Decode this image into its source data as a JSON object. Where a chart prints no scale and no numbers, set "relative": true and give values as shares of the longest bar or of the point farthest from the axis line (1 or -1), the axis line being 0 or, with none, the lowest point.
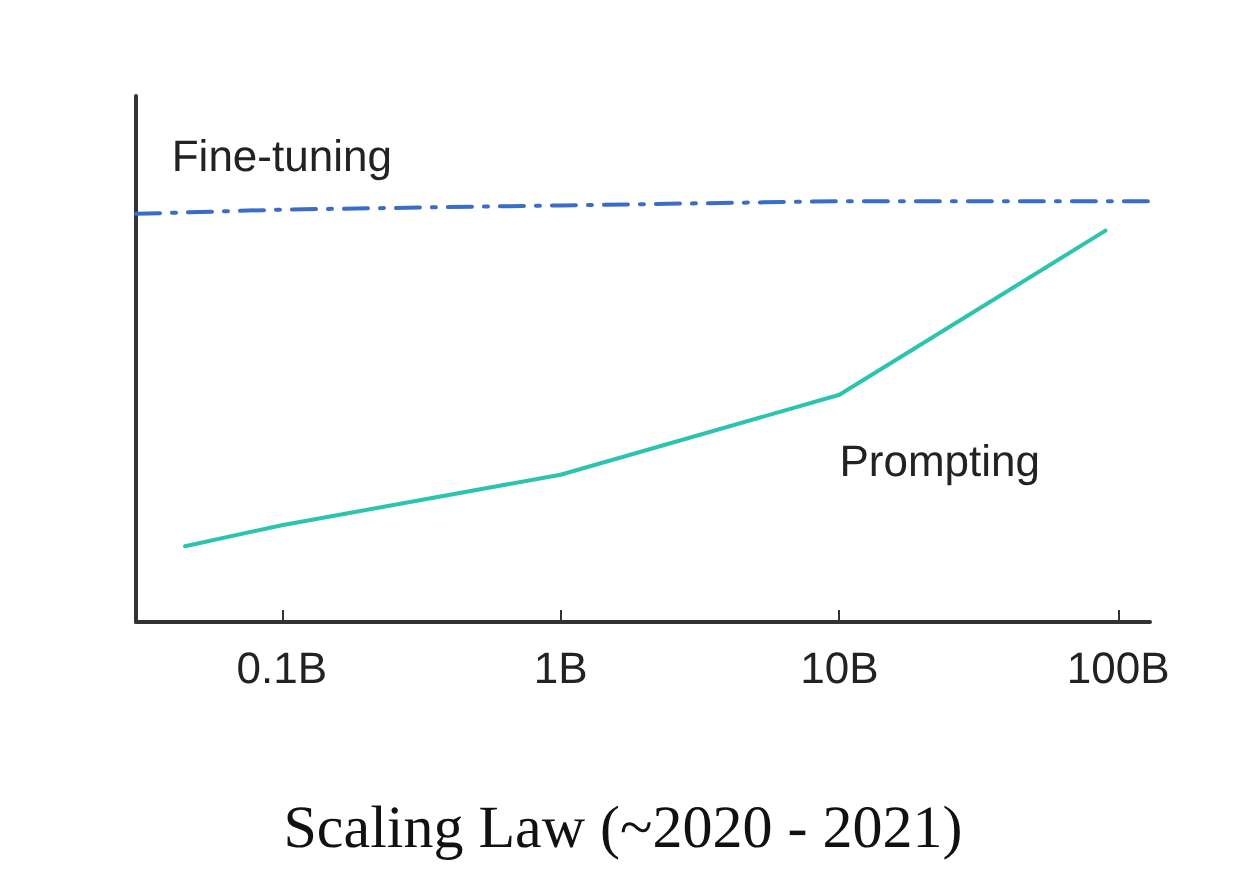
{
  "chart_data": {
    "type": "line",
    "title": "Scaling Law (~2020 - 2021)",
    "relative": true,
    "log": "x",
    "xlim": [
      0.03,
      130
    ],
    "xticks": [
      {
        "value": 0.1,
        "label": "0.1B"
      },
      {
        "value": 1,
        "label": "1B"
      },
      {
        "value": 10,
        "label": "10B"
      },
      {
        "value": 100,
        "label": "100B"
      }
    ],
    "series": [
      {
        "name": "Fine-tuning",
        "color": "#3a6cc8",
        "line_style": "dashed",
        "x": [
          0.03,
          0.1,
          1,
          10,
          100,
          130
        ],
        "values": [
          0.97,
          0.98,
          0.99,
          1,
          1,
          1
        ]
      },
      {
        "name": "Prompting",
        "color": "#2cc4ae",
        "line_style": "solid",
        "x": [
          0.045,
          0.1,
          1,
          10,
          90
        ],
        "values": [
          0.18,
          0.23,
          0.35,
          0.54,
          0.93
        ]
      }
    ],
    "legend": false,
    "grid": false,
    "marker": "none",
    "tick_labels": "x"
  }
}
